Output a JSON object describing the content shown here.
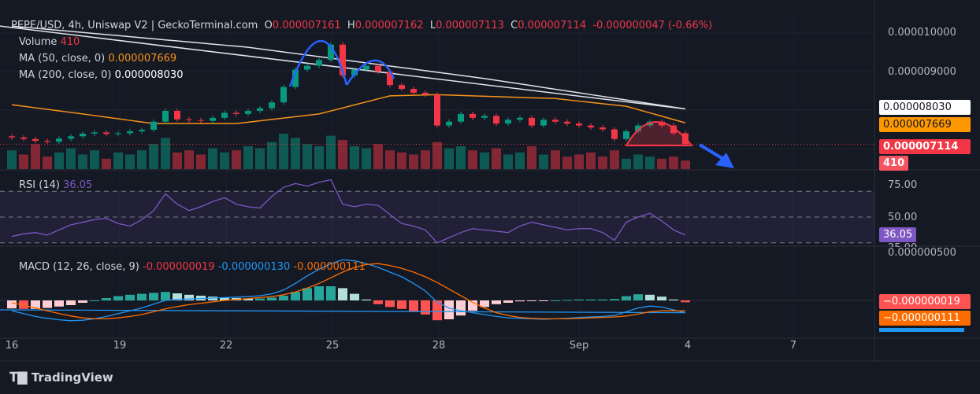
{
  "header": {
    "symbol": "PEPE/USD, 4h, Uniswap V2 | GeckoTerminal.com",
    "o_label": "O",
    "o": "0.000007161",
    "h_label": "H",
    "h": "0.000007162",
    "l_label": "L",
    "l": "0.000007113",
    "c_label": "C",
    "c": "0.000007114",
    "change": "-0.000000047 (-0.66%)"
  },
  "legend": {
    "volume_label": "Volume",
    "volume": "410",
    "ma50_label": "MA (50, close, 0)",
    "ma50": "0.000007669",
    "ma200_label": "MA (200, close, 0)",
    "ma200": "0.000008030"
  },
  "rsi": {
    "label": "RSI (14)",
    "value": "36.05",
    "ticks": [
      "75.00",
      "50.00",
      "25.00"
    ]
  },
  "macd": {
    "label": "MACD (12, 26, close, 9)",
    "hist": "-0.000000019",
    "macd": "-0.000000130",
    "signal": "-0.000000111",
    "tick": "0.000000500",
    "tag_hist": "−0.000000019",
    "tag_signal": "−0.000000111"
  },
  "price_axis": {
    "ticks": [
      "0.000010000",
      "0.000009000"
    ],
    "ma200_tag": "0.000008030",
    "ma50_tag": "0.000007669",
    "price_tag": "0.000007114",
    "volume_tag": "410"
  },
  "x_axis": [
    "16",
    "19",
    "22",
    "25",
    "28",
    "Sep",
    "4",
    "7"
  ],
  "brand": "TradingView",
  "colors": {
    "up": "#089981",
    "down": "#f23645",
    "ma50": "#f7931a",
    "ma200": "#e0e3eb",
    "rsi": "#7e57c2",
    "macd": "#2962ff",
    "signal": "#ff6d00",
    "pattern_blue": "#2962ff",
    "pattern_red": "#f23645"
  },
  "chart_data": {
    "type": "candlestick",
    "price_unit": "1e-9 USD",
    "close": [
      7290,
      7250,
      7200,
      7180,
      7260,
      7320,
      7390,
      7420,
      7380,
      7400,
      7450,
      7490,
      7700,
      7980,
      7760,
      7740,
      7720,
      7800,
      7930,
      7900,
      7980,
      8050,
      8200,
      8600,
      9050,
      9150,
      9300,
      9700,
      8900,
      9050,
      9150,
      9000,
      8650,
      8550,
      8450,
      8400,
      7600,
      7700,
      7900,
      7800,
      7850,
      7650,
      7750,
      7800,
      7600,
      7750,
      7700,
      7650,
      7600,
      7550,
      7500,
      7250,
      7450,
      7600,
      7700,
      7600,
      7400,
      7114
    ],
    "volume": [
      900,
      700,
      1200,
      600,
      800,
      1000,
      700,
      900,
      500,
      800,
      700,
      900,
      1200,
      1500,
      800,
      900,
      700,
      1000,
      800,
      900,
      1100,
      1000,
      1300,
      1700,
      1500,
      1200,
      1100,
      1600,
      1400,
      1100,
      1000,
      1200,
      900,
      800,
      700,
      900,
      1300,
      1000,
      1100,
      900,
      800,
      1000,
      700,
      800,
      1100,
      700,
      900,
      600,
      700,
      800,
      600,
      900,
      500,
      700,
      600,
      500,
      600,
      410
    ],
    "ma50": [
      [
        0,
        8140
      ],
      [
        6,
        7900
      ],
      [
        12,
        7650
      ],
      [
        19,
        7650
      ],
      [
        26,
        7900
      ],
      [
        32,
        8370
      ],
      [
        36,
        8400
      ],
      [
        46,
        8300
      ],
      [
        52,
        8100
      ],
      [
        57,
        7669
      ]
    ],
    "ma200": [
      [
        0,
        10180
      ],
      [
        20,
        9630
      ],
      [
        40,
        8820
      ],
      [
        57,
        8030
      ]
    ],
    "price_ylim": [
      6600,
      10400
    ],
    "rsi": [
      35,
      37,
      38,
      36,
      40,
      44,
      46,
      48,
      49,
      45,
      43,
      48,
      55,
      68,
      60,
      55,
      58,
      62,
      65,
      60,
      58,
      57,
      66,
      73,
      76,
      74,
      77,
      79,
      60,
      58,
      60,
      59,
      52,
      45,
      43,
      40,
      30,
      34,
      38,
      41,
      40,
      39,
      38,
      43,
      46,
      44,
      42,
      40,
      41,
      41,
      38,
      32,
      46,
      50,
      53,
      47,
      40,
      36.05
    ],
    "macd_line": [
      -110,
      -140,
      -170,
      -190,
      -205,
      -215,
      -210,
      -195,
      -170,
      -140,
      -110,
      -80,
      -40,
      0,
      10,
      15,
      20,
      25,
      30,
      35,
      40,
      50,
      70,
      110,
      180,
      260,
      330,
      390,
      430,
      420,
      390,
      350,
      300,
      250,
      180,
      100,
      -20,
      -80,
      -110,
      -130,
      -150,
      -170,
      -185,
      -190,
      -195,
      -200,
      -195,
      -190,
      -180,
      -175,
      -170,
      -160,
      -120,
      -80,
      -60,
      -70,
      -100,
      -130
    ],
    "signal_line": [
      -25,
      -50,
      -80,
      -110,
      -140,
      -165,
      -185,
      -195,
      -195,
      -185,
      -170,
      -150,
      -120,
      -90,
      -65,
      -45,
      -30,
      -15,
      0,
      10,
      20,
      30,
      40,
      60,
      90,
      130,
      180,
      240,
      300,
      350,
      380,
      390,
      370,
      340,
      300,
      250,
      190,
      120,
      50,
      -20,
      -80,
      -130,
      -160,
      -180,
      -190,
      -195,
      -195,
      -195,
      -190,
      -185,
      -180,
      -175,
      -165,
      -145,
      -120,
      -110,
      -110,
      -111
    ]
  }
}
